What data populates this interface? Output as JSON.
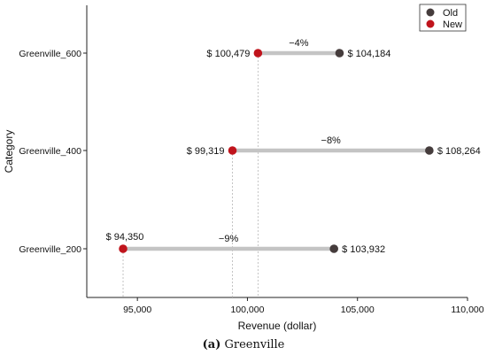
{
  "chart_data": {
    "type": "dumbbell",
    "xlabel": "Revenue (dollar)",
    "ylabel": "Category",
    "xlim": [
      92700,
      110000
    ],
    "xticks": [
      95000,
      100000,
      105000,
      110000
    ],
    "xtick_labels": [
      "95,000",
      "100,000",
      "105,000",
      "110,000"
    ],
    "categories": [
      "Greenville_600",
      "Greenville_400",
      "Greenville_200"
    ],
    "series": [
      {
        "name": "Old",
        "color": "#453c3c",
        "values": [
          104184,
          108264,
          103932
        ]
      },
      {
        "name": "New",
        "color": "#c0141c",
        "values": [
          100479,
          99319,
          94350
        ]
      }
    ],
    "old_labels": [
      "$ 104,184",
      "$ 108,264",
      "$ 103,932"
    ],
    "new_labels": [
      "$ 100,479",
      "$ 99,319",
      "$ 94,350"
    ],
    "change_labels": [
      "−4%",
      "−8%",
      "−9%"
    ],
    "legend": {
      "placement": "top-right",
      "entries": [
        "Old",
        "New"
      ]
    },
    "grid": false
  },
  "caption": {
    "tag": "(a)",
    "text": " Greenville"
  }
}
